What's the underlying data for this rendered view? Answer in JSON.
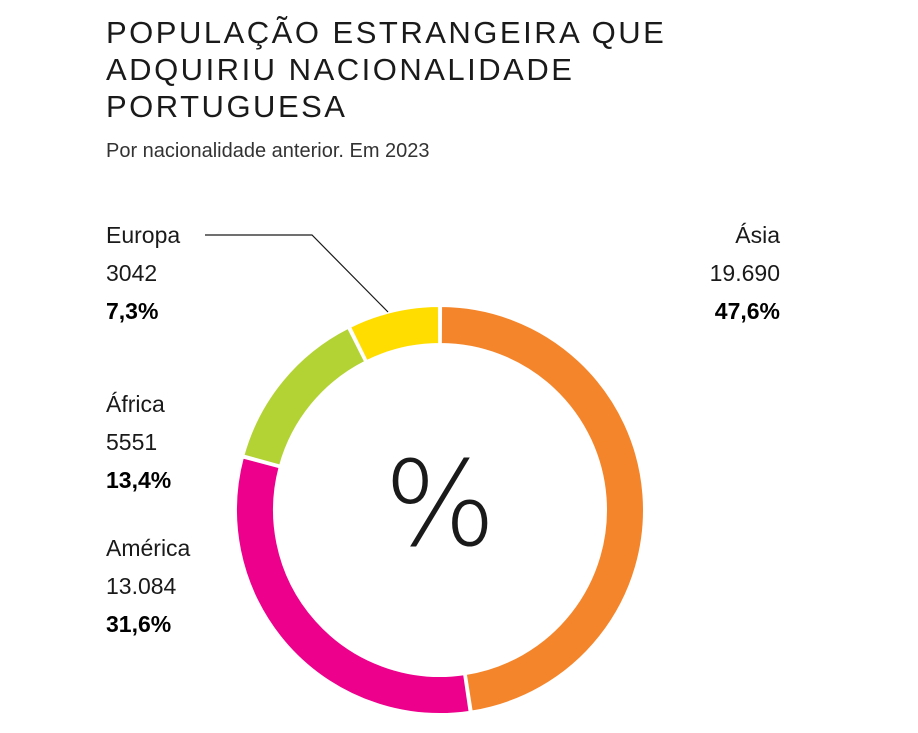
{
  "title": "POPULAÇÃO ESTRANGEIRA QUE ADQUIRIU NACIONALIDADE PORTUGUESA",
  "subtitle": "Por nacionalidade anterior. Em 2023",
  "center_symbol": "%",
  "chart_data": {
    "type": "pie",
    "variant": "donut",
    "title": "POPULAÇÃO ESTRANGEIRA QUE ADQUIRIU NACIONALIDADE PORTUGUESA",
    "subtitle": "Por nacionalidade anterior. Em 2023",
    "slices": [
      {
        "name": "Ásia",
        "value": 19690,
        "value_label": "19.690",
        "percent": 47.6,
        "percent_label": "47,6%",
        "color": "#F5852A"
      },
      {
        "name": "América",
        "value": 13084,
        "value_label": "13.084",
        "percent": 31.6,
        "percent_label": "31,6%",
        "color": "#EC008C"
      },
      {
        "name": "África",
        "value": 5551,
        "value_label": "5551",
        "percent": 13.4,
        "percent_label": "13,4%",
        "color": "#B3D334"
      },
      {
        "name": "Europa",
        "value": 3042,
        "value_label": "3042",
        "percent": 7.3,
        "percent_label": "7,3%",
        "color": "#FFDD00"
      }
    ],
    "start_angle_deg": 0,
    "direction": "clockwise",
    "legend": "none"
  }
}
